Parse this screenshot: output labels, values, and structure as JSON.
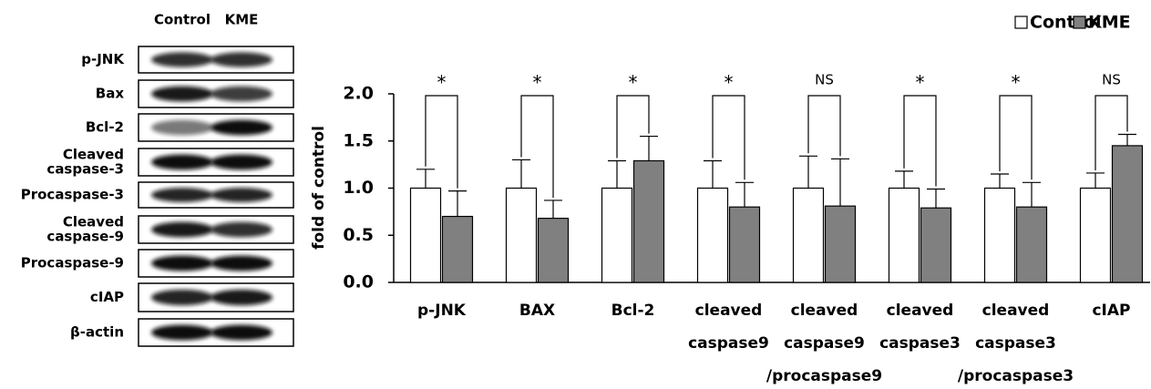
{
  "blot": {
    "columns": [
      "Control",
      "KME"
    ],
    "rows": [
      [
        "p-JNK"
      ],
      [
        "Bax"
      ],
      [
        "Bcl-2"
      ],
      [
        "Cleaved",
        "caspase-3"
      ],
      [
        "Procaspase-3"
      ],
      [
        "Cleaved",
        "caspase-9"
      ],
      [
        "Procaspase-9"
      ],
      [
        "cIAP"
      ],
      [
        "β-actin"
      ]
    ]
  },
  "chart_data": {
    "type": "bar",
    "ylabel": "fold of control",
    "categories": [
      [
        "p-JNK"
      ],
      [
        "BAX"
      ],
      [
        "Bcl-2"
      ],
      [
        "cleaved",
        "caspase9"
      ],
      [
        "cleaved",
        "caspase9",
        "/procaspase9"
      ],
      [
        "cleaved",
        "caspase3"
      ],
      [
        "cleaved",
        "caspase3",
        "/procaspase3"
      ],
      [
        "cIAP"
      ]
    ],
    "series": [
      {
        "name": "Control",
        "color": "#ffffff",
        "values": [
          1.0,
          1.0,
          1.0,
          1.0,
          1.0,
          1.0,
          1.0,
          1.0
        ],
        "errors": [
          0.2,
          0.3,
          0.29,
          0.29,
          0.34,
          0.18,
          0.15,
          0.16
        ]
      },
      {
        "name": "KME",
        "color": "#808080",
        "values": [
          0.7,
          0.68,
          1.29,
          0.8,
          0.81,
          0.79,
          0.8,
          1.45
        ],
        "errors": [
          0.27,
          0.19,
          0.26,
          0.26,
          0.5,
          0.2,
          0.26,
          0.12
        ]
      }
    ],
    "significance": [
      "*",
      "*",
      "*",
      "*",
      "NS",
      "*",
      "*",
      "NS"
    ],
    "ylim": [
      0,
      2.0
    ],
    "yticks": [
      {
        "value": 0,
        "label": "0.0"
      },
      {
        "value": 0.5,
        "label": "0.5"
      },
      {
        "value": 1,
        "label": "1.0"
      },
      {
        "value": 1.5,
        "label": "1.5"
      },
      {
        "value": 2,
        "label": "2.0"
      }
    ],
    "legend": "top-right"
  }
}
